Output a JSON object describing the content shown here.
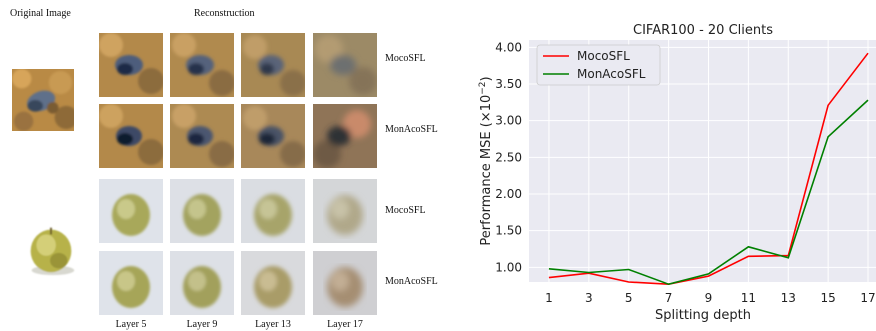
{
  "figure": {
    "original_label": "Original Image",
    "reconstruction_label": "Reconstruction",
    "rows": [
      {
        "method": "MocoSFL",
        "subject": "bird-thumbnail"
      },
      {
        "method": "MonAcoSFL",
        "subject": "bird-thumbnail"
      },
      {
        "method": "MocoSFL",
        "subject": "apple-thumbnail"
      },
      {
        "method": "MonAcoSFL",
        "subject": "apple-thumbnail"
      }
    ],
    "layers": [
      "Layer 5",
      "Layer 9",
      "Layer 13",
      "Layer 17"
    ]
  },
  "chart_data": {
    "type": "line",
    "title": "CIFAR100 - 20 Clients",
    "xlabel": "Splitting depth",
    "ylabel": "Performance MSE (×10",
    "ylabel_exp": "−2",
    "ylabel_close": ")",
    "x": [
      1,
      3,
      5,
      7,
      9,
      11,
      13,
      15,
      17
    ],
    "xticks": [
      "1",
      "3",
      "5",
      "7",
      "9",
      "11",
      "13",
      "15",
      "17"
    ],
    "yticks": [
      "1.00",
      "1.50",
      "2.00",
      "2.50",
      "3.00",
      "3.50",
      "4.00"
    ],
    "ylim": [
      0.8,
      4.1
    ],
    "xlim": [
      0.0,
      17.4
    ],
    "grid": true,
    "legend_position": "top-left",
    "series": [
      {
        "name": "MocoSFL",
        "color": "#ff0000",
        "values": [
          0.86,
          0.92,
          0.8,
          0.77,
          0.88,
          1.15,
          1.16,
          3.21,
          3.92
        ]
      },
      {
        "name": "MonAcoSFL",
        "color": "#008000",
        "values": [
          0.98,
          0.93,
          0.97,
          0.77,
          0.91,
          1.28,
          1.13,
          2.78,
          3.28
        ]
      }
    ]
  }
}
